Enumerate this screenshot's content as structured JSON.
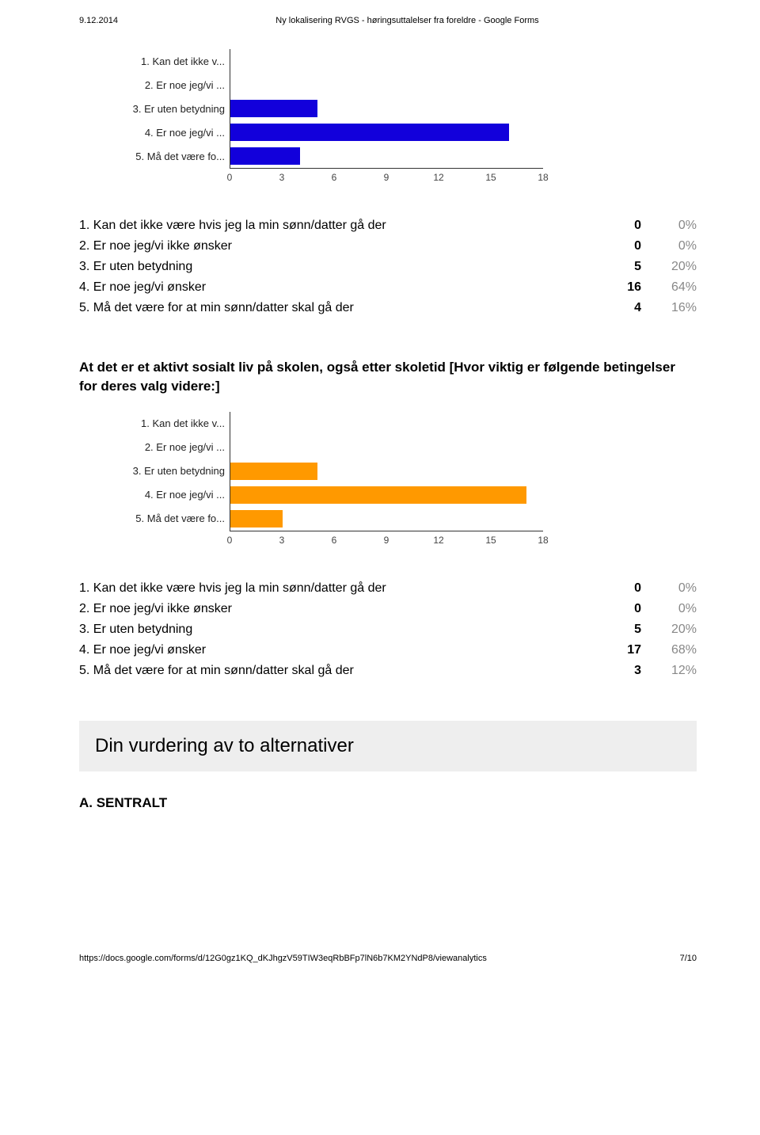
{
  "header": {
    "date": "9.12.2014",
    "title": "Ny lokalisering RVGS - høringsuttalelser fra foreldre - Google Forms"
  },
  "chart1": {
    "type": "bar",
    "bar_color": "#1200db",
    "axis_color": "#333333",
    "label_color": "#222222",
    "xmax": 18,
    "tick_step": 3,
    "ticks": [
      "0",
      "3",
      "6",
      "9",
      "12",
      "15",
      "18"
    ],
    "categories": [
      {
        "label": "1. Kan det ikke v...",
        "value": 0
      },
      {
        "label": "2. Er noe jeg/vi ...",
        "value": 0
      },
      {
        "label": "3. Er uten betydning",
        "value": 5
      },
      {
        "label": "4. Er noe jeg/vi ...",
        "value": 16
      },
      {
        "label": "5. Må det være fo...",
        "value": 4
      }
    ]
  },
  "table1": {
    "rows": [
      {
        "label": "1. Kan det ikke være hvis jeg la min sønn/datter gå der",
        "count": "0",
        "pct": "0%"
      },
      {
        "label": "2. Er noe jeg/vi ikke ønsker",
        "count": "0",
        "pct": "0%"
      },
      {
        "label": "3. Er uten betydning",
        "count": "5",
        "pct": "20%"
      },
      {
        "label": "4. Er noe jeg/vi ønsker",
        "count": "16",
        "pct": "64%"
      },
      {
        "label": "5. Må det være for at min sønn/datter skal gå der",
        "count": "4",
        "pct": "16%"
      }
    ]
  },
  "question2": "At det er et aktivt sosialt liv på skolen, også etter skoletid [Hvor viktig er følgende betingelser for deres valg videre:]",
  "chart2": {
    "type": "bar",
    "bar_color": "#ff9900",
    "axis_color": "#333333",
    "label_color": "#222222",
    "xmax": 18,
    "tick_step": 3,
    "ticks": [
      "0",
      "3",
      "6",
      "9",
      "12",
      "15",
      "18"
    ],
    "categories": [
      {
        "label": "1. Kan det ikke v...",
        "value": 0
      },
      {
        "label": "2. Er noe jeg/vi ...",
        "value": 0
      },
      {
        "label": "3. Er uten betydning",
        "value": 5
      },
      {
        "label": "4. Er noe jeg/vi ...",
        "value": 17
      },
      {
        "label": "5. Må det være fo...",
        "value": 3
      }
    ]
  },
  "table2": {
    "rows": [
      {
        "label": "1. Kan det ikke være hvis jeg la min sønn/datter gå der",
        "count": "0",
        "pct": "0%"
      },
      {
        "label": "2. Er noe jeg/vi ikke ønsker",
        "count": "0",
        "pct": "0%"
      },
      {
        "label": "3. Er uten betydning",
        "count": "5",
        "pct": "20%"
      },
      {
        "label": "4. Er noe jeg/vi ønsker",
        "count": "17",
        "pct": "68%"
      },
      {
        "label": "5. Må det være for at min sønn/datter skal gå der",
        "count": "3",
        "pct": "12%"
      }
    ]
  },
  "section_heading": "Din vurdering av to alternativer",
  "sub_heading": "A. SENTRALT",
  "footer": {
    "url": "https://docs.google.com/forms/d/12G0gz1KQ_dKJhgzV59TIW3eqRbBFp7lN6b7KM2YNdP8/viewanalytics",
    "page": "7/10"
  }
}
